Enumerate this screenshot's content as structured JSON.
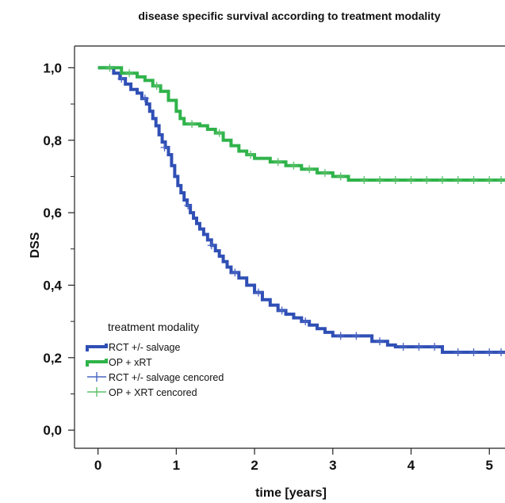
{
  "chart_data": {
    "type": "line",
    "step": true,
    "title": "disease specific survival according to treatment modality",
    "xlabel": "time [years]",
    "ylabel": "DSS",
    "xlim": [
      -0.3,
      5.2
    ],
    "ylim": [
      -0.05,
      1.06
    ],
    "x_ticks": [
      0,
      1,
      2,
      3,
      4,
      5
    ],
    "x_tick_labels": [
      "0",
      "1",
      "2",
      "3",
      "4",
      "5"
    ],
    "y_ticks": [
      0.0,
      0.2,
      0.4,
      0.6,
      0.8,
      1.0
    ],
    "y_tick_labels": [
      "0,0",
      "0,2",
      "0,4",
      "0,6",
      "0,8",
      "1,0"
    ],
    "grid": false,
    "legend": {
      "title": "treatment modality",
      "placement": "bottom-left",
      "entries": [
        {
          "label": "RCT +/- salvage",
          "kind": "line",
          "color": "#2f4fb5"
        },
        {
          "label": "OP + xRT",
          "kind": "line",
          "color": "#2fb34a"
        },
        {
          "label": "RCT +/- salvage cencored",
          "kind": "censor",
          "color": "#4a66c4"
        },
        {
          "label": "OP + XRT cencored",
          "kind": "censor",
          "color": "#5cc06a"
        }
      ]
    },
    "series": [
      {
        "name": "RCT +/- salvage",
        "color": "#2f4fb5",
        "x": [
          0,
          0.2,
          0.28,
          0.35,
          0.42,
          0.5,
          0.56,
          0.62,
          0.66,
          0.7,
          0.74,
          0.78,
          0.82,
          0.86,
          0.9,
          0.94,
          0.98,
          1.02,
          1.06,
          1.1,
          1.14,
          1.18,
          1.22,
          1.26,
          1.3,
          1.35,
          1.4,
          1.45,
          1.5,
          1.55,
          1.6,
          1.65,
          1.7,
          1.8,
          1.9,
          2.0,
          2.1,
          2.2,
          2.3,
          2.4,
          2.5,
          2.6,
          2.7,
          2.8,
          2.9,
          3.0,
          3.5,
          3.7,
          3.8,
          4.4,
          5.2
        ],
        "y": [
          1.0,
          0.985,
          0.97,
          0.955,
          0.94,
          0.93,
          0.915,
          0.9,
          0.88,
          0.86,
          0.84,
          0.815,
          0.795,
          0.78,
          0.76,
          0.73,
          0.7,
          0.675,
          0.655,
          0.635,
          0.62,
          0.6,
          0.585,
          0.57,
          0.555,
          0.54,
          0.525,
          0.51,
          0.495,
          0.48,
          0.465,
          0.45,
          0.435,
          0.42,
          0.4,
          0.38,
          0.36,
          0.345,
          0.33,
          0.32,
          0.31,
          0.3,
          0.29,
          0.28,
          0.27,
          0.26,
          0.245,
          0.235,
          0.23,
          0.215,
          0.215
        ]
      },
      {
        "name": "OP + xRT",
        "color": "#2fb34a",
        "x": [
          0,
          0.3,
          0.5,
          0.6,
          0.7,
          0.8,
          0.9,
          1.0,
          1.05,
          1.1,
          1.3,
          1.4,
          1.5,
          1.6,
          1.7,
          1.8,
          1.9,
          2.0,
          2.2,
          2.4,
          2.6,
          2.8,
          3.0,
          3.2,
          5.2
        ],
        "y": [
          1.0,
          0.985,
          0.975,
          0.965,
          0.95,
          0.935,
          0.91,
          0.88,
          0.86,
          0.845,
          0.84,
          0.83,
          0.82,
          0.8,
          0.785,
          0.77,
          0.76,
          0.75,
          0.74,
          0.73,
          0.72,
          0.71,
          0.7,
          0.69,
          0.69
        ]
      }
    ],
    "censored": [
      {
        "series": "RCT +/- salvage",
        "color": "#4a66c4",
        "x": [
          0.3,
          0.6,
          0.85,
          1.15,
          1.45,
          1.75,
          2.05,
          2.35,
          2.65,
          3.1,
          3.3,
          3.6,
          3.9,
          4.1,
          4.3,
          4.6,
          4.8,
          5.0,
          5.15
        ],
        "y": [
          0.97,
          0.915,
          0.78,
          0.62,
          0.51,
          0.435,
          0.38,
          0.33,
          0.3,
          0.26,
          0.26,
          0.245,
          0.23,
          0.23,
          0.23,
          0.215,
          0.215,
          0.215,
          0.215
        ]
      },
      {
        "series": "OP + xRT",
        "color": "#5cc06a",
        "x": [
          0.15,
          0.4,
          0.75,
          1.2,
          1.55,
          1.95,
          2.3,
          2.5,
          2.7,
          2.9,
          3.1,
          3.4,
          3.6,
          3.8,
          4.0,
          4.2,
          4.4,
          4.6,
          4.8,
          5.0,
          5.15
        ],
        "y": [
          1.0,
          0.985,
          0.95,
          0.845,
          0.82,
          0.76,
          0.74,
          0.73,
          0.72,
          0.71,
          0.7,
          0.69,
          0.69,
          0.69,
          0.69,
          0.69,
          0.69,
          0.69,
          0.69,
          0.69,
          0.69
        ]
      }
    ]
  }
}
